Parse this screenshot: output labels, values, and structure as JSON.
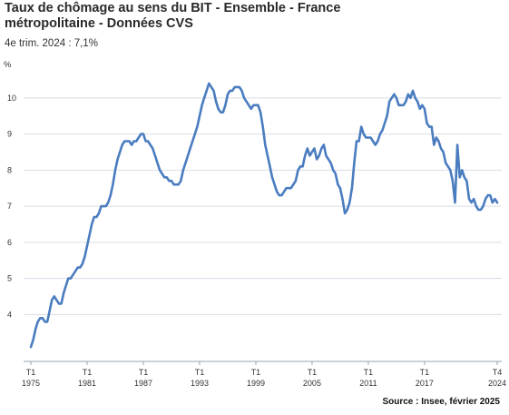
{
  "header": {
    "title_line1": "Taux de chômage au sens du BIT - Ensemble - France",
    "title_line2": "métropolitaine - Données CVS",
    "subtitle": "4e trim. 2024 : 7,1%",
    "unit": "%"
  },
  "footer": {
    "source": "Source : Insee, février 2025"
  },
  "chart_data": {
    "type": "line",
    "title": "Taux de chômage au sens du BIT - Ensemble - France métropolitaine - Données CVS",
    "subtitle": "4e trim. 2024 : 7,1%",
    "ylabel": "%",
    "ylim": [
      2.7,
      10.7
    ],
    "yticks": [
      4,
      5,
      6,
      7,
      8,
      9,
      10
    ],
    "grid": true,
    "x_tick_labels": [
      {
        "t": 1975.0,
        "q": "T1",
        "y": "1975"
      },
      {
        "t": 1981.0,
        "q": "T1",
        "y": "1981"
      },
      {
        "t": 1987.0,
        "q": "T1",
        "y": "1987"
      },
      {
        "t": 1993.0,
        "q": "T1",
        "y": "1993"
      },
      {
        "t": 1999.0,
        "q": "T1",
        "y": "1999"
      },
      {
        "t": 2005.0,
        "q": "T1",
        "y": "2005"
      },
      {
        "t": 2011.0,
        "q": "T1",
        "y": "2011"
      },
      {
        "t": 2017.0,
        "q": "T1",
        "y": "2017"
      },
      {
        "t": 2024.75,
        "q": "T4",
        "y": "2024"
      }
    ],
    "series": [
      {
        "color": "#4a7cc0",
        "points": [
          [
            1975.0,
            3.1
          ],
          [
            1975.25,
            3.3
          ],
          [
            1975.5,
            3.6
          ],
          [
            1975.75,
            3.8
          ],
          [
            1976.0,
            3.9
          ],
          [
            1976.25,
            3.9
          ],
          [
            1976.5,
            3.8
          ],
          [
            1976.75,
            3.8
          ],
          [
            1977.0,
            4.1
          ],
          [
            1977.25,
            4.4
          ],
          [
            1977.5,
            4.5
          ],
          [
            1977.75,
            4.4
          ],
          [
            1978.0,
            4.3
          ],
          [
            1978.25,
            4.3
          ],
          [
            1978.5,
            4.6
          ],
          [
            1978.75,
            4.8
          ],
          [
            1979.0,
            5.0
          ],
          [
            1979.25,
            5.0
          ],
          [
            1979.5,
            5.1
          ],
          [
            1979.75,
            5.2
          ],
          [
            1980.0,
            5.3
          ],
          [
            1980.25,
            5.3
          ],
          [
            1980.5,
            5.4
          ],
          [
            1980.75,
            5.6
          ],
          [
            1981.0,
            5.9
          ],
          [
            1981.25,
            6.2
          ],
          [
            1981.5,
            6.5
          ],
          [
            1981.75,
            6.7
          ],
          [
            1982.0,
            6.7
          ],
          [
            1982.25,
            6.8
          ],
          [
            1982.5,
            7.0
          ],
          [
            1982.75,
            7.0
          ],
          [
            1983.0,
            7.0
          ],
          [
            1983.25,
            7.1
          ],
          [
            1983.5,
            7.3
          ],
          [
            1983.75,
            7.6
          ],
          [
            1984.0,
            8.0
          ],
          [
            1984.25,
            8.3
          ],
          [
            1984.5,
            8.5
          ],
          [
            1984.75,
            8.7
          ],
          [
            1985.0,
            8.8
          ],
          [
            1985.25,
            8.8
          ],
          [
            1985.5,
            8.8
          ],
          [
            1985.75,
            8.7
          ],
          [
            1986.0,
            8.8
          ],
          [
            1986.25,
            8.8
          ],
          [
            1986.5,
            8.9
          ],
          [
            1986.75,
            9.0
          ],
          [
            1987.0,
            9.0
          ],
          [
            1987.25,
            8.8
          ],
          [
            1987.5,
            8.8
          ],
          [
            1987.75,
            8.7
          ],
          [
            1988.0,
            8.6
          ],
          [
            1988.25,
            8.4
          ],
          [
            1988.5,
            8.2
          ],
          [
            1988.75,
            8.0
          ],
          [
            1989.0,
            7.9
          ],
          [
            1989.25,
            7.8
          ],
          [
            1989.5,
            7.8
          ],
          [
            1989.75,
            7.7
          ],
          [
            1990.0,
            7.7
          ],
          [
            1990.25,
            7.6
          ],
          [
            1990.5,
            7.6
          ],
          [
            1990.75,
            7.6
          ],
          [
            1991.0,
            7.7
          ],
          [
            1991.25,
            8.0
          ],
          [
            1991.5,
            8.2
          ],
          [
            1991.75,
            8.4
          ],
          [
            1992.0,
            8.6
          ],
          [
            1992.25,
            8.8
          ],
          [
            1992.5,
            9.0
          ],
          [
            1992.75,
            9.2
          ],
          [
            1993.0,
            9.5
          ],
          [
            1993.25,
            9.8
          ],
          [
            1993.5,
            10.0
          ],
          [
            1993.75,
            10.2
          ],
          [
            1994.0,
            10.4
          ],
          [
            1994.25,
            10.3
          ],
          [
            1994.5,
            10.2
          ],
          [
            1994.75,
            9.9
          ],
          [
            1995.0,
            9.7
          ],
          [
            1995.25,
            9.6
          ],
          [
            1995.5,
            9.6
          ],
          [
            1995.75,
            9.8
          ],
          [
            1996.0,
            10.1
          ],
          [
            1996.25,
            10.2
          ],
          [
            1996.5,
            10.2
          ],
          [
            1996.75,
            10.3
          ],
          [
            1997.0,
            10.3
          ],
          [
            1997.25,
            10.3
          ],
          [
            1997.5,
            10.2
          ],
          [
            1997.75,
            10.0
          ],
          [
            1998.0,
            9.9
          ],
          [
            1998.25,
            9.8
          ],
          [
            1998.5,
            9.7
          ],
          [
            1998.75,
            9.8
          ],
          [
            1999.0,
            9.8
          ],
          [
            1999.25,
            9.8
          ],
          [
            1999.5,
            9.6
          ],
          [
            1999.75,
            9.2
          ],
          [
            2000.0,
            8.7
          ],
          [
            2000.25,
            8.4
          ],
          [
            2000.5,
            8.1
          ],
          [
            2000.75,
            7.8
          ],
          [
            2001.0,
            7.6
          ],
          [
            2001.25,
            7.4
          ],
          [
            2001.5,
            7.3
          ],
          [
            2001.75,
            7.3
          ],
          [
            2002.0,
            7.4
          ],
          [
            2002.25,
            7.5
          ],
          [
            2002.5,
            7.5
          ],
          [
            2002.75,
            7.5
          ],
          [
            2003.0,
            7.6
          ],
          [
            2003.25,
            7.7
          ],
          [
            2003.5,
            8.0
          ],
          [
            2003.75,
            8.1
          ],
          [
            2004.0,
            8.1
          ],
          [
            2004.25,
            8.4
          ],
          [
            2004.5,
            8.6
          ],
          [
            2004.75,
            8.4
          ],
          [
            2005.0,
            8.5
          ],
          [
            2005.25,
            8.6
          ],
          [
            2005.5,
            8.3
          ],
          [
            2005.75,
            8.4
          ],
          [
            2006.0,
            8.6
          ],
          [
            2006.25,
            8.7
          ],
          [
            2006.5,
            8.4
          ],
          [
            2006.75,
            8.3
          ],
          [
            2007.0,
            8.2
          ],
          [
            2007.25,
            8.0
          ],
          [
            2007.5,
            7.9
          ],
          [
            2007.75,
            7.6
          ],
          [
            2008.0,
            7.5
          ],
          [
            2008.25,
            7.2
          ],
          [
            2008.5,
            6.8
          ],
          [
            2008.75,
            6.9
          ],
          [
            2009.0,
            7.1
          ],
          [
            2009.25,
            7.5
          ],
          [
            2009.5,
            8.2
          ],
          [
            2009.75,
            8.8
          ],
          [
            2010.0,
            8.8
          ],
          [
            2010.25,
            9.2
          ],
          [
            2010.5,
            9.0
          ],
          [
            2010.75,
            8.9
          ],
          [
            2011.0,
            8.9
          ],
          [
            2011.25,
            8.9
          ],
          [
            2011.5,
            8.8
          ],
          [
            2011.75,
            8.7
          ],
          [
            2012.0,
            8.8
          ],
          [
            2012.25,
            9.0
          ],
          [
            2012.5,
            9.1
          ],
          [
            2012.75,
            9.3
          ],
          [
            2013.0,
            9.5
          ],
          [
            2013.25,
            9.9
          ],
          [
            2013.5,
            10.0
          ],
          [
            2013.75,
            10.1
          ],
          [
            2014.0,
            10.0
          ],
          [
            2014.25,
            9.8
          ],
          [
            2014.5,
            9.8
          ],
          [
            2014.75,
            9.8
          ],
          [
            2015.0,
            9.9
          ],
          [
            2015.25,
            10.1
          ],
          [
            2015.5,
            10.0
          ],
          [
            2015.75,
            10.2
          ],
          [
            2016.0,
            10.0
          ],
          [
            2016.25,
            9.9
          ],
          [
            2016.5,
            9.7
          ],
          [
            2016.75,
            9.8
          ],
          [
            2017.0,
            9.7
          ],
          [
            2017.25,
            9.3
          ],
          [
            2017.5,
            9.2
          ],
          [
            2017.75,
            9.2
          ],
          [
            2018.0,
            8.7
          ],
          [
            2018.25,
            8.9
          ],
          [
            2018.5,
            8.8
          ],
          [
            2018.75,
            8.6
          ],
          [
            2019.0,
            8.5
          ],
          [
            2019.25,
            8.2
          ],
          [
            2019.5,
            8.1
          ],
          [
            2019.75,
            8.0
          ],
          [
            2020.0,
            7.7
          ],
          [
            2020.25,
            7.1
          ],
          [
            2020.5,
            8.7
          ],
          [
            2020.75,
            7.8
          ],
          [
            2021.0,
            8.0
          ],
          [
            2021.25,
            7.8
          ],
          [
            2021.5,
            7.7
          ],
          [
            2021.75,
            7.2
          ],
          [
            2022.0,
            7.1
          ],
          [
            2022.25,
            7.2
          ],
          [
            2022.5,
            7.0
          ],
          [
            2022.75,
            6.9
          ],
          [
            2023.0,
            6.9
          ],
          [
            2023.25,
            7.0
          ],
          [
            2023.5,
            7.2
          ],
          [
            2023.75,
            7.3
          ],
          [
            2024.0,
            7.3
          ],
          [
            2024.25,
            7.1
          ],
          [
            2024.5,
            7.2
          ],
          [
            2024.75,
            7.1
          ]
        ]
      }
    ]
  }
}
